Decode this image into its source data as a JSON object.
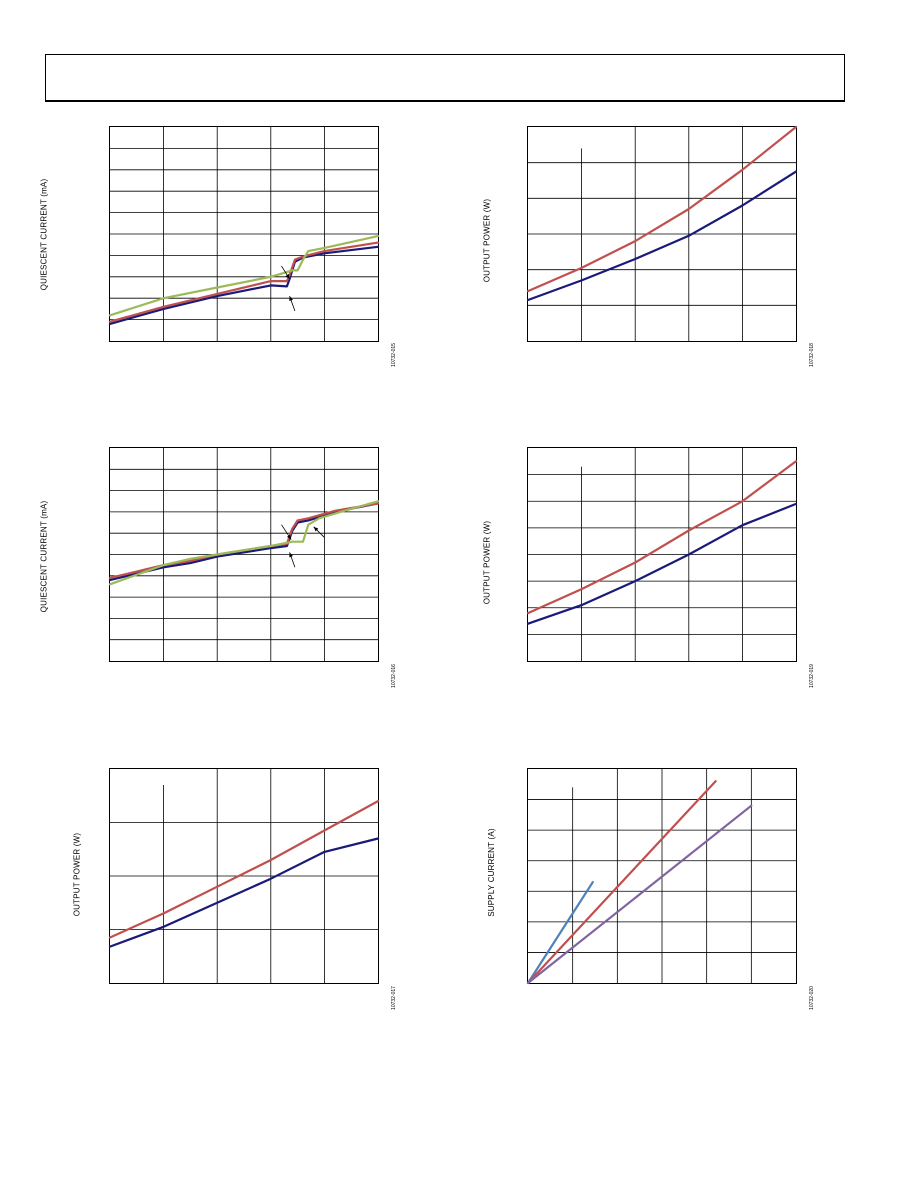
{
  "header": {
    "title": ""
  },
  "charts": [
    {
      "id": "c1",
      "ylabel": "QUIESCENT CURRENT (mA)",
      "fig_id": "10732-015",
      "chart_data": {
        "type": "line",
        "title": "",
        "xlabel": "",
        "ylabel": "QUIESCENT CURRENT (mA)",
        "xlim": [
          0,
          5
        ],
        "ylim": [
          0,
          10
        ],
        "grid": true,
        "vgrid": [
          1,
          2,
          3,
          4
        ],
        "hgrid": [
          1,
          2,
          3,
          4,
          5,
          6,
          7,
          8,
          9
        ],
        "series": [
          {
            "color": "#1a1a7a",
            "x": [
              0,
              1,
              2,
              3,
              3.3,
              3.35,
              3.45,
              3.6,
              4.0,
              5
            ],
            "y": [
              0.8,
              1.5,
              2.1,
              2.6,
              2.55,
              2.9,
              3.7,
              3.9,
              4.1,
              4.4
            ]
          },
          {
            "color": "#c0504d",
            "x": [
              0,
              1,
              2,
              3,
              3.3,
              3.35,
              3.45,
              3.6,
              4.0,
              5
            ],
            "y": [
              0.9,
              1.6,
              2.2,
              2.8,
              2.8,
              3.1,
              3.8,
              3.95,
              4.2,
              4.6
            ]
          },
          {
            "color": "#9bbb59",
            "x": [
              0,
              1,
              2,
              3,
              3.4,
              3.5,
              3.6,
              3.7,
              4.0,
              5
            ],
            "y": [
              1.2,
              2.0,
              2.5,
              3.0,
              3.3,
              3.3,
              3.8,
              4.2,
              4.35,
              4.9
            ]
          }
        ]
      },
      "arrows": [
        {
          "x1": 3.2,
          "y1": 3.5,
          "x2": 3.35,
          "y2": 2.9
        },
        {
          "x1": 3.45,
          "y1": 1.4,
          "x2": 3.35,
          "y2": 2.1
        }
      ]
    },
    {
      "id": "c2",
      "ylabel": "OUTPUT POWER (W)",
      "fig_id": "10732-018",
      "chart_data": {
        "type": "line",
        "title": "",
        "xlabel": "",
        "ylabel": "OUTPUT POWER (W)",
        "xlim": [
          0,
          5
        ],
        "ylim": [
          0,
          6
        ],
        "grid": true,
        "vgrid": [
          1,
          2,
          3,
          4
        ],
        "hgrid": [
          1,
          2,
          3,
          4,
          5
        ],
        "vgrid_from": 5.4,
        "series": [
          {
            "color": "#1a1a7a",
            "x": [
              0,
              1,
              2,
              3,
              4,
              5
            ],
            "y": [
              1.15,
              1.7,
              2.3,
              2.95,
              3.8,
              4.75
            ]
          },
          {
            "color": "#c0504d",
            "x": [
              0,
              1,
              2,
              3,
              4,
              5
            ],
            "y": [
              1.4,
              2.05,
              2.8,
              3.7,
              4.8,
              6.0
            ]
          }
        ]
      },
      "arrows": []
    },
    {
      "id": "c3",
      "ylabel": "QUIESCENT CURRENT (mA)",
      "fig_id": "10732-016",
      "chart_data": {
        "type": "line",
        "title": "",
        "xlabel": "",
        "ylabel": "QUIESCENT CURRENT (mA)",
        "xlim": [
          0,
          5
        ],
        "ylim": [
          0,
          10
        ],
        "grid": true,
        "vgrid": [
          1,
          2,
          3,
          4
        ],
        "hgrid": [
          1,
          2,
          3,
          4,
          5,
          6,
          7,
          8,
          9
        ],
        "series": [
          {
            "color": "#1a1a7a",
            "x": [
              0,
              1,
              1.5,
              2,
              3,
              3.3,
              3.4,
              3.5,
              3.7,
              4.2,
              5
            ],
            "y": [
              3.8,
              4.4,
              4.6,
              4.9,
              5.3,
              5.4,
              6.1,
              6.5,
              6.6,
              7.0,
              7.4
            ]
          },
          {
            "color": "#c0504d",
            "x": [
              0,
              1,
              1.5,
              2,
              3,
              3.3,
              3.4,
              3.5,
              3.7,
              4.2,
              5
            ],
            "y": [
              3.9,
              4.5,
              4.7,
              5.0,
              5.4,
              5.5,
              6.2,
              6.6,
              6.7,
              7.05,
              7.4
            ]
          },
          {
            "color": "#9bbb59",
            "x": [
              0,
              1,
              1.5,
              2,
              3,
              3.4,
              3.6,
              3.7,
              3.9,
              4.3,
              5
            ],
            "y": [
              3.6,
              4.5,
              4.8,
              5.0,
              5.4,
              5.6,
              5.6,
              6.4,
              6.7,
              7.0,
              7.5
            ]
          }
        ]
      },
      "arrows": [
        {
          "x1": 3.2,
          "y1": 6.4,
          "x2": 3.38,
          "y2": 5.7
        },
        {
          "x1": 3.45,
          "y1": 4.4,
          "x2": 3.35,
          "y2": 5.1
        },
        {
          "x1": 4.0,
          "y1": 5.8,
          "x2": 3.8,
          "y2": 6.3
        }
      ]
    },
    {
      "id": "c4",
      "ylabel": "OUTPUT POWER (W)",
      "fig_id": "10732-019",
      "chart_data": {
        "type": "line",
        "title": "",
        "xlabel": "",
        "ylabel": "OUTPUT POWER (W)",
        "xlim": [
          0,
          5
        ],
        "ylim": [
          0,
          8
        ],
        "grid": true,
        "vgrid": [
          1,
          2,
          3,
          4
        ],
        "hgrid": [
          1,
          2,
          3,
          4,
          5,
          6,
          7
        ],
        "vgrid_from": 7.3,
        "series": [
          {
            "color": "#1a1a7a",
            "x": [
              0,
              1,
              2,
              3,
              4,
              5
            ],
            "y": [
              1.4,
              2.1,
              3.0,
              4.0,
              5.1,
              5.9
            ]
          },
          {
            "color": "#c0504d",
            "x": [
              0,
              1,
              2,
              3,
              4,
              5
            ],
            "y": [
              1.8,
              2.7,
              3.7,
              4.9,
              6.0,
              7.5
            ]
          }
        ]
      },
      "arrows": []
    },
    {
      "id": "c5",
      "ylabel": "OUTPUT POWER (W)",
      "fig_id": "10732-017",
      "chart_data": {
        "type": "line",
        "title": "",
        "xlabel": "",
        "ylabel": "OUTPUT POWER (W)",
        "xlim": [
          0,
          5
        ],
        "ylim": [
          0,
          4
        ],
        "grid": true,
        "vgrid": [
          1,
          2,
          3,
          4
        ],
        "hgrid": [
          1,
          2,
          3
        ],
        "vgrid_from": 3.7,
        "series": [
          {
            "color": "#1a1a7a",
            "x": [
              0,
              1,
              2,
              3,
              4,
              5
            ],
            "y": [
              0.68,
              1.05,
              1.5,
              1.95,
              2.45,
              2.7
            ]
          },
          {
            "color": "#c0504d",
            "x": [
              0,
              1,
              2,
              3,
              4,
              5
            ],
            "y": [
              0.85,
              1.3,
              1.8,
              2.3,
              2.85,
              3.4
            ]
          }
        ]
      },
      "arrows": []
    },
    {
      "id": "c6",
      "ylabel": "SUPPLY CURRENT (A)",
      "fig_id": "10732-020",
      "chart_data": {
        "type": "line",
        "title": "",
        "xlabel": "",
        "ylabel": "SUPPLY CURRENT (A)",
        "xlim": [
          0,
          6
        ],
        "ylim": [
          0,
          7
        ],
        "grid": true,
        "vgrid": [
          1,
          2,
          3,
          4,
          5
        ],
        "hgrid": [
          1,
          2,
          3,
          4,
          5,
          6
        ],
        "vgrid_from": 6.4,
        "series": [
          {
            "color": "#4f81bd",
            "x": [
              0,
              1.45
            ],
            "y": [
              0,
              3.3
            ]
          },
          {
            "color": "#c0504d",
            "x": [
              0,
              4.2
            ],
            "y": [
              0,
              6.6
            ]
          },
          {
            "color": "#8064a2",
            "x": [
              0,
              5.0
            ],
            "y": [
              0,
              5.8
            ]
          }
        ]
      },
      "arrows": []
    }
  ]
}
